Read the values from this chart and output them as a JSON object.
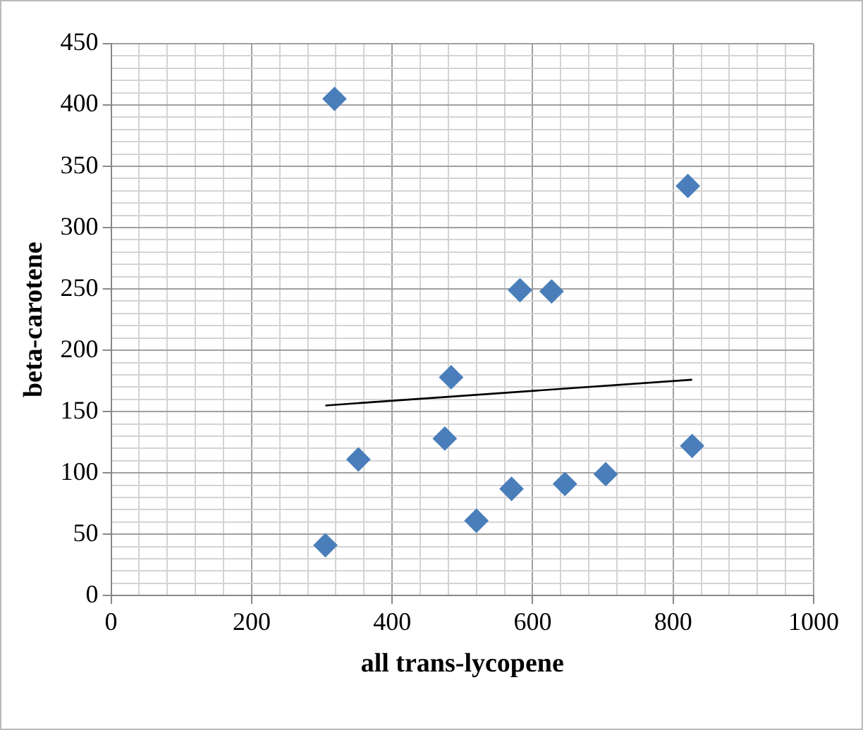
{
  "chart_data": {
    "type": "scatter",
    "xlabel": "all trans-lycopene",
    "ylabel": "beta-carotene",
    "xlim": [
      0,
      1000
    ],
    "ylim": [
      0,
      450
    ],
    "xticks": [
      0,
      {
        "value": 40,
        "label": null
      },
      {
        "value": 80,
        "label": null
      },
      {
        "value": 120,
        "label": null
      },
      {
        "value": 160,
        "label": null
      },
      200,
      {
        "value": 240,
        "label": null
      },
      {
        "value": 280,
        "label": null
      },
      {
        "value": 320,
        "label": null
      },
      {
        "value": 360,
        "label": null
      },
      400,
      {
        "value": 440,
        "label": null
      },
      {
        "value": 480,
        "label": null
      },
      {
        "value": 520,
        "label": null
      },
      {
        "value": 560,
        "label": null
      },
      600,
      {
        "value": 640,
        "label": null
      },
      {
        "value": 680,
        "label": null
      },
      {
        "value": 720,
        "label": null
      },
      {
        "value": 760,
        "label": null
      },
      800,
      {
        "value": 840,
        "label": null
      },
      {
        "value": 880,
        "label": null
      },
      {
        "value": 920,
        "label": null
      },
      {
        "value": 960,
        "label": null
      },
      1000
    ],
    "yticks": [
      0,
      {
        "value": 10,
        "label": null
      },
      {
        "value": 20,
        "label": null
      },
      {
        "value": 30,
        "label": null
      },
      {
        "value": 40,
        "label": null
      },
      50,
      {
        "value": 60,
        "label": null
      },
      {
        "value": 70,
        "label": null
      },
      {
        "value": 80,
        "label": null
      },
      {
        "value": 90,
        "label": null
      },
      100,
      {
        "value": 110,
        "label": null
      },
      {
        "value": 120,
        "label": null
      },
      {
        "value": 130,
        "label": null
      },
      {
        "value": 140,
        "label": null
      },
      150,
      {
        "value": 160,
        "label": null
      },
      {
        "value": 170,
        "label": null
      },
      {
        "value": 180,
        "label": null
      },
      {
        "value": 190,
        "label": null
      },
      200,
      {
        "value": 210,
        "label": null
      },
      {
        "value": 220,
        "label": null
      },
      {
        "value": 230,
        "label": null
      },
      {
        "value": 240,
        "label": null
      },
      250,
      {
        "value": 260,
        "label": null
      },
      {
        "value": 270,
        "label": null
      },
      {
        "value": 280,
        "label": null
      },
      {
        "value": 290,
        "label": null
      },
      300,
      {
        "value": 310,
        "label": null
      },
      {
        "value": 320,
        "label": null
      },
      {
        "value": 330,
        "label": null
      },
      {
        "value": 340,
        "label": null
      },
      350,
      {
        "value": 360,
        "label": null
      },
      {
        "value": 370,
        "label": null
      },
      {
        "value": 380,
        "label": null
      },
      {
        "value": 390,
        "label": null
      },
      400,
      {
        "value": 410,
        "label": null
      },
      {
        "value": 420,
        "label": null
      },
      {
        "value": 430,
        "label": null
      },
      {
        "value": 440,
        "label": null
      },
      450
    ],
    "grid": true,
    "legend": false,
    "series": [
      {
        "color": "#4a7ebb",
        "marker": "diamond",
        "x": [
          318,
          305,
          352,
          475,
          484,
          520,
          582,
          627,
          570,
          646,
          704,
          821,
          827
        ],
        "values": [
          405,
          41,
          111,
          128,
          178,
          61,
          249,
          248,
          87,
          91,
          99,
          334,
          122
        ]
      },
      {
        "type": "line",
        "color": "#000000",
        "marker": "none",
        "x": [
          305,
          827
        ],
        "values": [
          155,
          176
        ]
      }
    ]
  }
}
